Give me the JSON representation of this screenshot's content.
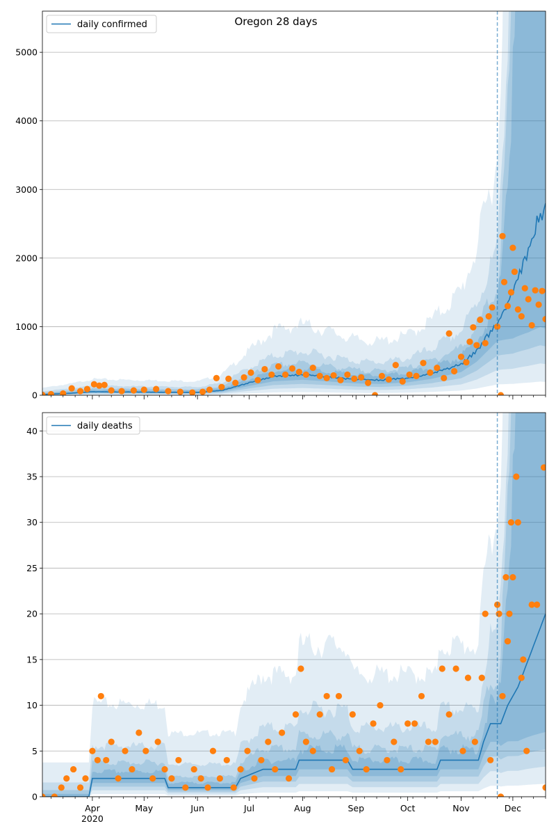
{
  "chart_data": [
    {
      "type": "line",
      "title": "Oregon 28 days",
      "legend": [
        {
          "label": "daily confirmed",
          "color": "#1f77b4"
        }
      ],
      "legend_loc": "upper left",
      "ylim": [
        0,
        5600
      ],
      "yticks": [
        0,
        1000,
        2000,
        3000,
        4000,
        5000
      ],
      "grid": "horizontal",
      "forecast_start": "2020-11-22",
      "x_range": [
        "2020-03-03",
        "2020-12-20"
      ],
      "median_knots": [
        [
          "2020-03-03",
          10
        ],
        [
          "2020-03-20",
          30
        ],
        [
          "2020-04-01",
          50
        ],
        [
          "2020-05-01",
          45
        ],
        [
          "2020-06-01",
          40
        ],
        [
          "2020-06-15",
          70
        ],
        [
          "2020-07-01",
          180
        ],
        [
          "2020-07-15",
          270
        ],
        [
          "2020-08-01",
          300
        ],
        [
          "2020-08-15",
          270
        ],
        [
          "2020-09-01",
          230
        ],
        [
          "2020-09-15",
          220
        ],
        [
          "2020-10-01",
          250
        ],
        [
          "2020-10-15",
          320
        ],
        [
          "2020-11-01",
          450
        ],
        [
          "2020-11-10",
          650
        ],
        [
          "2020-11-22",
          1050
        ],
        [
          "2020-12-01",
          1500
        ],
        [
          "2020-12-10",
          2100
        ],
        [
          "2020-12-17",
          2650
        ],
        [
          "2020-12-20",
          2750
        ]
      ],
      "observed": [
        [
          "2020-03-03",
          5
        ],
        [
          "2020-03-08",
          15
        ],
        [
          "2020-03-15",
          25
        ],
        [
          "2020-03-20",
          100
        ],
        [
          "2020-03-25",
          60
        ],
        [
          "2020-03-29",
          90
        ],
        [
          "2020-04-02",
          160
        ],
        [
          "2020-04-05",
          140
        ],
        [
          "2020-04-08",
          150
        ],
        [
          "2020-04-12",
          70
        ],
        [
          "2020-04-18",
          60
        ],
        [
          "2020-04-25",
          70
        ],
        [
          "2020-05-01",
          80
        ],
        [
          "2020-05-08",
          90
        ],
        [
          "2020-05-15",
          60
        ],
        [
          "2020-05-22",
          50
        ],
        [
          "2020-05-29",
          40
        ],
        [
          "2020-06-04",
          50
        ],
        [
          "2020-06-08",
          80
        ],
        [
          "2020-06-12",
          250
        ],
        [
          "2020-06-15",
          120
        ],
        [
          "2020-06-19",
          240
        ],
        [
          "2020-06-23",
          180
        ],
        [
          "2020-06-28",
          260
        ],
        [
          "2020-07-02",
          330
        ],
        [
          "2020-07-06",
          220
        ],
        [
          "2020-07-10",
          380
        ],
        [
          "2020-07-14",
          300
        ],
        [
          "2020-07-18",
          420
        ],
        [
          "2020-07-22",
          300
        ],
        [
          "2020-07-26",
          390
        ],
        [
          "2020-07-30",
          340
        ],
        [
          "2020-08-03",
          300
        ],
        [
          "2020-08-07",
          400
        ],
        [
          "2020-08-11",
          280
        ],
        [
          "2020-08-15",
          250
        ],
        [
          "2020-08-19",
          290
        ],
        [
          "2020-08-23",
          220
        ],
        [
          "2020-08-27",
          300
        ],
        [
          "2020-08-31",
          240
        ],
        [
          "2020-09-04",
          260
        ],
        [
          "2020-09-08",
          180
        ],
        [
          "2020-09-12",
          0
        ],
        [
          "2020-09-16",
          280
        ],
        [
          "2020-09-20",
          230
        ],
        [
          "2020-09-24",
          440
        ],
        [
          "2020-09-28",
          200
        ],
        [
          "2020-10-02",
          300
        ],
        [
          "2020-10-06",
          280
        ],
        [
          "2020-10-10",
          470
        ],
        [
          "2020-10-14",
          330
        ],
        [
          "2020-10-18",
          400
        ],
        [
          "2020-10-22",
          250
        ],
        [
          "2020-10-25",
          900
        ],
        [
          "2020-10-28",
          350
        ],
        [
          "2020-11-01",
          560
        ],
        [
          "2020-11-04",
          480
        ],
        [
          "2020-11-06",
          780
        ],
        [
          "2020-11-08",
          990
        ],
        [
          "2020-11-10",
          730
        ],
        [
          "2020-11-12",
          1100
        ],
        [
          "2020-11-15",
          760
        ],
        [
          "2020-11-17",
          1150
        ],
        [
          "2020-11-19",
          1280
        ],
        [
          "2020-11-22",
          1000
        ],
        [
          "2020-11-24",
          0
        ],
        [
          "2020-11-25",
          2320
        ],
        [
          "2020-11-26",
          1650
        ],
        [
          "2020-11-28",
          1300
        ],
        [
          "2020-11-30",
          1500
        ],
        [
          "2020-12-01",
          2150
        ],
        [
          "2020-12-02",
          1800
        ],
        [
          "2020-12-04",
          1250
        ],
        [
          "2020-12-06",
          1150
        ],
        [
          "2020-12-08",
          1560
        ],
        [
          "2020-12-10",
          1400
        ],
        [
          "2020-12-12",
          1020
        ],
        [
          "2020-12-14",
          1530
        ],
        [
          "2020-12-16",
          1320
        ],
        [
          "2020-12-18",
          1520
        ],
        [
          "2020-12-20",
          1110
        ]
      ]
    },
    {
      "type": "line",
      "title": "",
      "legend": [
        {
          "label": "daily deaths",
          "color": "#1f77b4"
        }
      ],
      "legend_loc": "upper left",
      "ylim": [
        0,
        42
      ],
      "yticks": [
        0,
        5,
        10,
        15,
        20,
        25,
        30,
        35,
        40
      ],
      "grid": "horizontal",
      "forecast_start": "2020-11-22",
      "x_range": [
        "2020-03-03",
        "2020-12-20"
      ],
      "xtick_labels": [
        "Apr\n2020",
        "May",
        "Jun",
        "Jul",
        "Aug",
        "Sep",
        "Oct",
        "Nov",
        "Dec"
      ],
      "xtick_dates": [
        "2020-04-01",
        "2020-05-01",
        "2020-06-01",
        "2020-07-01",
        "2020-08-01",
        "2020-09-01",
        "2020-10-01",
        "2020-11-01",
        "2020-12-01"
      ],
      "median_knots": [
        [
          "2020-03-03",
          0
        ],
        [
          "2020-03-30",
          0
        ],
        [
          "2020-04-01",
          2
        ],
        [
          "2020-05-13",
          2
        ],
        [
          "2020-05-15",
          1
        ],
        [
          "2020-06-23",
          1
        ],
        [
          "2020-06-26",
          2
        ],
        [
          "2020-07-09",
          3
        ],
        [
          "2020-07-28",
          3
        ],
        [
          "2020-07-30",
          4
        ],
        [
          "2020-08-27",
          4
        ],
        [
          "2020-08-30",
          3
        ],
        [
          "2020-10-18",
          3
        ],
        [
          "2020-10-20",
          4
        ],
        [
          "2020-11-11",
          4
        ],
        [
          "2020-11-14",
          6
        ],
        [
          "2020-11-18",
          8
        ],
        [
          "2020-11-24",
          8
        ],
        [
          "2020-11-28",
          10
        ],
        [
          "2020-12-04",
          12
        ],
        [
          "2020-12-10",
          15
        ],
        [
          "2020-12-16",
          18
        ],
        [
          "2020-12-20",
          20
        ]
      ],
      "observed": [
        [
          "2020-03-03",
          0
        ],
        [
          "2020-03-10",
          0
        ],
        [
          "2020-03-14",
          1
        ],
        [
          "2020-03-17",
          2
        ],
        [
          "2020-03-21",
          3
        ],
        [
          "2020-03-25",
          1
        ],
        [
          "2020-03-28",
          2
        ],
        [
          "2020-04-01",
          5
        ],
        [
          "2020-04-04",
          4
        ],
        [
          "2020-04-06",
          11
        ],
        [
          "2020-04-09",
          4
        ],
        [
          "2020-04-12",
          6
        ],
        [
          "2020-04-16",
          2
        ],
        [
          "2020-04-20",
          5
        ],
        [
          "2020-04-24",
          3
        ],
        [
          "2020-04-28",
          7
        ],
        [
          "2020-05-02",
          5
        ],
        [
          "2020-05-06",
          2
        ],
        [
          "2020-05-09",
          6
        ],
        [
          "2020-05-13",
          3
        ],
        [
          "2020-05-17",
          2
        ],
        [
          "2020-05-21",
          4
        ],
        [
          "2020-05-25",
          1
        ],
        [
          "2020-05-30",
          3
        ],
        [
          "2020-06-03",
          2
        ],
        [
          "2020-06-07",
          1
        ],
        [
          "2020-06-10",
          5
        ],
        [
          "2020-06-14",
          2
        ],
        [
          "2020-06-18",
          4
        ],
        [
          "2020-06-22",
          1
        ],
        [
          "2020-06-26",
          3
        ],
        [
          "2020-06-30",
          5
        ],
        [
          "2020-07-04",
          2
        ],
        [
          "2020-07-08",
          4
        ],
        [
          "2020-07-12",
          6
        ],
        [
          "2020-07-16",
          3
        ],
        [
          "2020-07-20",
          7
        ],
        [
          "2020-07-24",
          2
        ],
        [
          "2020-07-28",
          9
        ],
        [
          "2020-07-31",
          14
        ],
        [
          "2020-08-03",
          6
        ],
        [
          "2020-08-07",
          5
        ],
        [
          "2020-08-11",
          9
        ],
        [
          "2020-08-15",
          11
        ],
        [
          "2020-08-18",
          3
        ],
        [
          "2020-08-22",
          11
        ],
        [
          "2020-08-26",
          4
        ],
        [
          "2020-08-30",
          9
        ],
        [
          "2020-09-03",
          5
        ],
        [
          "2020-09-07",
          3
        ],
        [
          "2020-09-11",
          8
        ],
        [
          "2020-09-15",
          10
        ],
        [
          "2020-09-19",
          4
        ],
        [
          "2020-09-23",
          6
        ],
        [
          "2020-09-27",
          3
        ],
        [
          "2020-10-01",
          8
        ],
        [
          "2020-10-05",
          8
        ],
        [
          "2020-10-09",
          11
        ],
        [
          "2020-10-13",
          6
        ],
        [
          "2020-10-17",
          6
        ],
        [
          "2020-10-21",
          14
        ],
        [
          "2020-10-25",
          9
        ],
        [
          "2020-10-29",
          14
        ],
        [
          "2020-11-02",
          5
        ],
        [
          "2020-11-05",
          13
        ],
        [
          "2020-11-09",
          6
        ],
        [
          "2020-11-13",
          13
        ],
        [
          "2020-11-15",
          20
        ],
        [
          "2020-11-18",
          4
        ],
        [
          "2020-11-22",
          21
        ],
        [
          "2020-11-23",
          20
        ],
        [
          "2020-11-24",
          0
        ],
        [
          "2020-11-25",
          11
        ],
        [
          "2020-11-27",
          24
        ],
        [
          "2020-11-28",
          17
        ],
        [
          "2020-11-29",
          20
        ],
        [
          "2020-11-30",
          30
        ],
        [
          "2020-12-01",
          24
        ],
        [
          "2020-12-03",
          35
        ],
        [
          "2020-12-04",
          30
        ],
        [
          "2020-12-06",
          13
        ],
        [
          "2020-12-07",
          15
        ],
        [
          "2020-12-09",
          5
        ],
        [
          "2020-12-12",
          21
        ],
        [
          "2020-12-15",
          21
        ],
        [
          "2020-12-19",
          36
        ],
        [
          "2020-12-20",
          1
        ]
      ]
    }
  ]
}
